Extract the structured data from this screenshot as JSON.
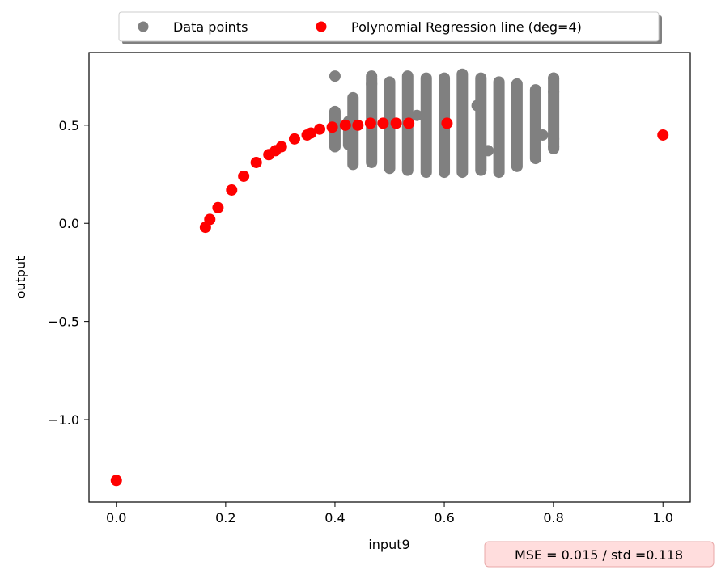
{
  "chart_data": {
    "type": "scatter",
    "xlabel": "input9",
    "ylabel": "output",
    "xlim": [
      -0.05,
      1.05
    ],
    "ylim": [
      -1.42,
      0.87
    ],
    "xticks": [
      0.0,
      0.2,
      0.4,
      0.6,
      0.8,
      1.0
    ],
    "xtick_labels": [
      "0.0",
      "0.2",
      "0.4",
      "0.6",
      "0.8",
      "1.0"
    ],
    "yticks": [
      0.5,
      0.0,
      -0.5,
      -1.0
    ],
    "ytick_labels": [
      "0.5",
      "0.0",
      "−0.5",
      "−1.0"
    ],
    "grid": false,
    "legend": {
      "position": "top-center",
      "entries": [
        "Data points",
        "Polynomial Regression line (deg=4)"
      ]
    },
    "annotation": "MSE = 0.015 / std =0.118",
    "colors": {
      "data": "#808080",
      "fit": "#ff0000",
      "annotation_bg": "#ffdddd",
      "annotation_border": "#e8a8a8"
    },
    "series": [
      {
        "name": "Data points",
        "columns": [
          {
            "x": 0.4,
            "ymin": 0.39,
            "ymax": 0.57
          },
          {
            "x": 0.425,
            "ymin": 0.4,
            "ymax": 0.52
          },
          {
            "x": 0.433,
            "ymin": 0.3,
            "ymax": 0.64
          },
          {
            "x": 0.467,
            "ymin": 0.31,
            "ymax": 0.74
          },
          {
            "x": 0.5,
            "ymin": 0.28,
            "ymax": 0.72
          },
          {
            "x": 0.533,
            "ymin": 0.27,
            "ymax": 0.75
          },
          {
            "x": 0.567,
            "ymin": 0.26,
            "ymax": 0.74
          },
          {
            "x": 0.6,
            "ymin": 0.26,
            "ymax": 0.74
          },
          {
            "x": 0.633,
            "ymin": 0.26,
            "ymax": 0.76
          },
          {
            "x": 0.667,
            "ymin": 0.27,
            "ymax": 0.74
          },
          {
            "x": 0.7,
            "ymin": 0.26,
            "ymax": 0.72
          },
          {
            "x": 0.733,
            "ymin": 0.29,
            "ymax": 0.71
          },
          {
            "x": 0.767,
            "ymin": 0.33,
            "ymax": 0.68
          },
          {
            "x": 0.8,
            "ymin": 0.38,
            "ymax": 0.74
          }
        ],
        "points": [
          {
            "x": 0.4,
            "y": 0.75
          },
          {
            "x": 0.467,
            "y": 0.75
          },
          {
            "x": 0.467,
            "y": 0.71
          },
          {
            "x": 0.55,
            "y": 0.55
          },
          {
            "x": 0.66,
            "y": 0.6
          },
          {
            "x": 0.68,
            "y": 0.37
          },
          {
            "x": 0.78,
            "y": 0.45
          },
          {
            "x": 0.8,
            "y": 0.74
          },
          {
            "x": 0.8,
            "y": 0.67
          },
          {
            "x": 0.8,
            "y": 0.39
          },
          {
            "x": 0.8,
            "y": 0.43
          }
        ]
      },
      {
        "name": "Polynomial Regression line (deg=4)",
        "x": [
          0.0,
          0.163,
          0.171,
          0.186,
          0.211,
          0.233,
          0.256,
          0.279,
          0.291,
          0.302,
          0.326,
          0.349,
          0.356,
          0.372,
          0.395,
          0.419,
          0.442,
          0.465,
          0.488,
          0.512,
          0.535,
          0.605,
          1.0
        ],
        "y": [
          -1.31,
          -0.02,
          0.02,
          0.08,
          0.17,
          0.24,
          0.31,
          0.35,
          0.37,
          0.39,
          0.43,
          0.45,
          0.46,
          0.48,
          0.49,
          0.5,
          0.5,
          0.51,
          0.51,
          0.51,
          0.51,
          0.51,
          0.45
        ]
      }
    ]
  }
}
